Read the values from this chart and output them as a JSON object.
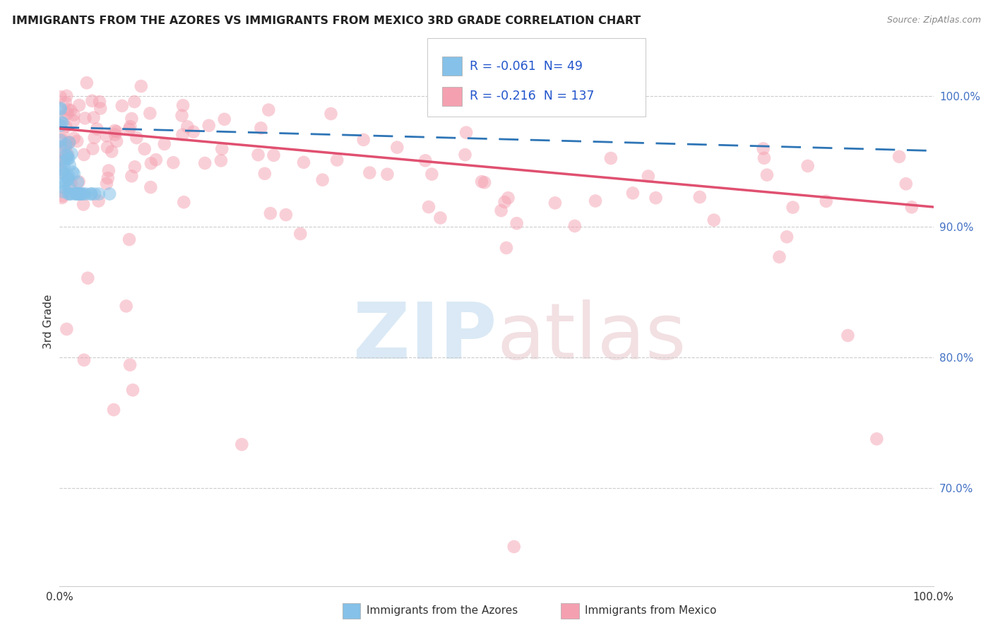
{
  "title": "IMMIGRANTS FROM THE AZORES VS IMMIGRANTS FROM MEXICO 3RD GRADE CORRELATION CHART",
  "source": "Source: ZipAtlas.com",
  "ylabel": "3rd Grade",
  "legend_blue_R": "-0.061",
  "legend_blue_N": "49",
  "legend_pink_R": "-0.216",
  "legend_pink_N": "137",
  "legend_label_blue": "Immigrants from the Azores",
  "legend_label_pink": "Immigrants from Mexico",
  "color_blue": "#85C1E8",
  "color_pink": "#F4A0B0",
  "color_blue_line": "#2E75B6",
  "color_pink_line": "#E05070",
  "background_color": "#FFFFFF",
  "x_lim": [
    0.0,
    1.0
  ],
  "y_lim": [
    0.625,
    1.03
  ],
  "y_ticks": [
    0.7,
    0.8,
    0.9,
    1.0
  ],
  "y_tick_labels": [
    "70.0%",
    "80.0%",
    "90.0%",
    "100.0%"
  ],
  "grid_color": "#CCCCCC",
  "title_color": "#222222",
  "source_color": "#888888",
  "right_tick_color": "#4472C4"
}
